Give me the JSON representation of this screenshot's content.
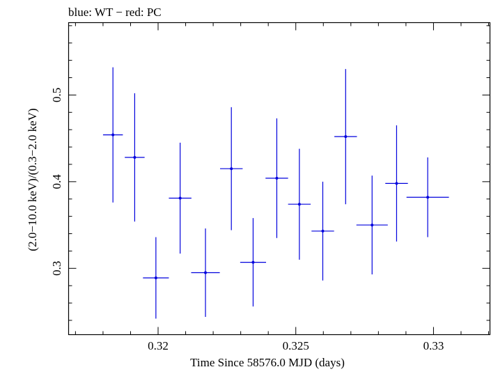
{
  "chart_data": {
    "type": "scatter",
    "title": "blue: WT − red: PC",
    "xlabel": "Time Since 58576.0 MJD (days)",
    "ylabel": "(2.0−10.0 keV)/(0.3−2.0 keV)",
    "xlim": [
      0.31675,
      0.33205
    ],
    "ylim": [
      0.2235,
      0.5835
    ],
    "x_ticks": [
      {
        "value": 0.32,
        "label": "0.32"
      },
      {
        "value": 0.325,
        "label": "0.325"
      },
      {
        "value": 0.33,
        "label": "0.33"
      }
    ],
    "y_ticks": [
      {
        "value": 0.3,
        "label": "0.3"
      },
      {
        "value": 0.4,
        "label": "0.4"
      },
      {
        "value": 0.5,
        "label": "0.5"
      }
    ],
    "x_minor_step": 0.001,
    "y_minor_step": 0.02,
    "grid": false,
    "series": [
      {
        "color": "#0000dd",
        "points": [
          {
            "x": 0.31836,
            "xerr": 0.00036,
            "y": 0.454,
            "yerr_lo": 0.078,
            "yerr_hi": 0.078
          },
          {
            "x": 0.31915,
            "xerr": 0.00036,
            "y": 0.428,
            "yerr_lo": 0.074,
            "yerr_hi": 0.074
          },
          {
            "x": 0.31992,
            "xerr": 0.00047,
            "y": 0.289,
            "yerr_lo": 0.047,
            "yerr_hi": 0.047
          },
          {
            "x": 0.3208,
            "xerr": 0.00041,
            "y": 0.381,
            "yerr_lo": 0.064,
            "yerr_hi": 0.064
          },
          {
            "x": 0.32172,
            "xerr": 0.00052,
            "y": 0.295,
            "yerr_lo": 0.051,
            "yerr_hi": 0.051
          },
          {
            "x": 0.32266,
            "xerr": 0.00041,
            "y": 0.415,
            "yerr_lo": 0.071,
            "yerr_hi": 0.071
          },
          {
            "x": 0.32345,
            "xerr": 0.00047,
            "y": 0.307,
            "yerr_lo": 0.051,
            "yerr_hi": 0.051
          },
          {
            "x": 0.32431,
            "xerr": 0.00041,
            "y": 0.404,
            "yerr_lo": 0.069,
            "yerr_hi": 0.069
          },
          {
            "x": 0.32513,
            "xerr": 0.00041,
            "y": 0.374,
            "yerr_lo": 0.064,
            "yerr_hi": 0.064
          },
          {
            "x": 0.32598,
            "xerr": 0.00041,
            "y": 0.343,
            "yerr_lo": 0.057,
            "yerr_hi": 0.057
          },
          {
            "x": 0.32681,
            "xerr": 0.00041,
            "y": 0.452,
            "yerr_lo": 0.078,
            "yerr_hi": 0.078
          },
          {
            "x": 0.32777,
            "xerr": 0.00057,
            "y": 0.35,
            "yerr_lo": 0.057,
            "yerr_hi": 0.057
          },
          {
            "x": 0.32866,
            "xerr": 0.00041,
            "y": 0.398,
            "yerr_lo": 0.067,
            "yerr_hi": 0.067
          },
          {
            "x": 0.32979,
            "xerr": 0.00077,
            "y": 0.382,
            "yerr_lo": 0.046,
            "yerr_hi": 0.046
          }
        ]
      }
    ]
  }
}
